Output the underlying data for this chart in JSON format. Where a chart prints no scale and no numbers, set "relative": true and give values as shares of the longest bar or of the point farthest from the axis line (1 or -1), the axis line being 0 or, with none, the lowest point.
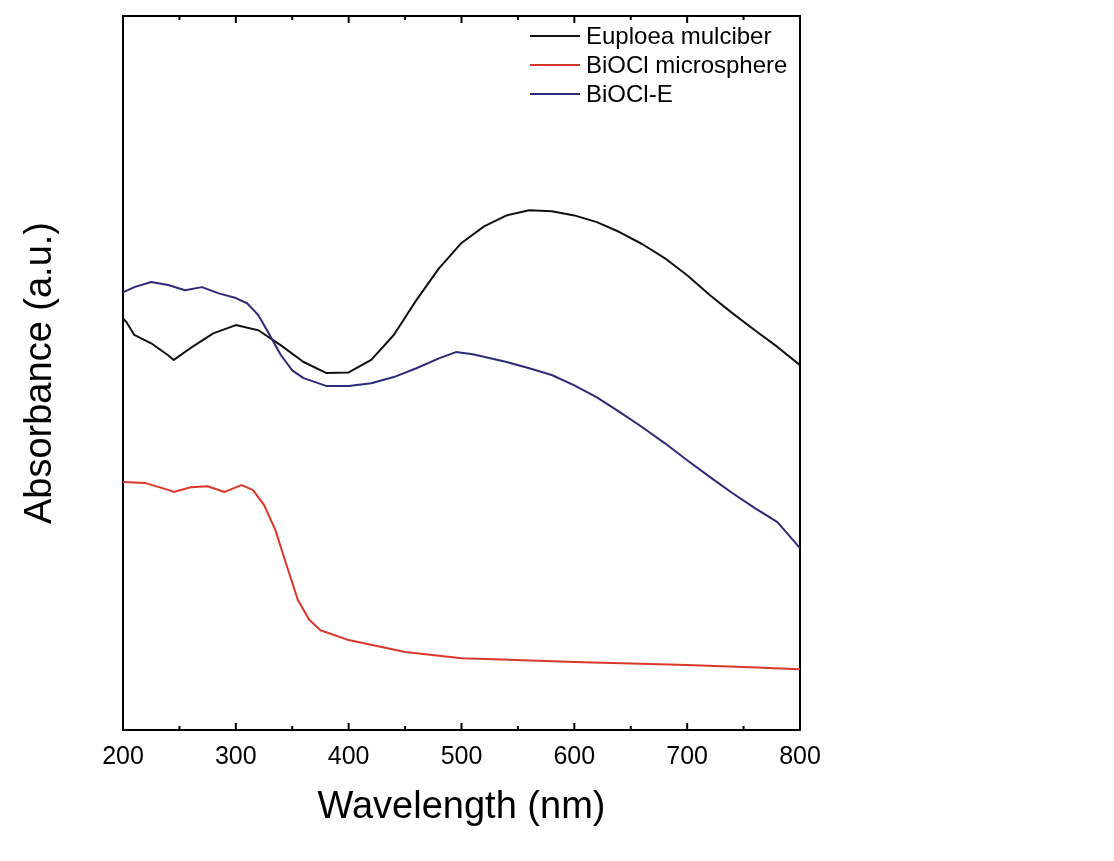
{
  "chart_data": {
    "type": "line",
    "xlabel": "Wavelength (nm)",
    "ylabel": "Absorbance (a.u.)",
    "relative": true,
    "xlim": [
      200,
      800
    ],
    "xticks": [
      200,
      {
        "value": 250,
        "label": null
      },
      300,
      {
        "value": 350,
        "label": null
      },
      400,
      {
        "value": 450,
        "label": null
      },
      500,
      {
        "value": 550,
        "label": null
      },
      600,
      {
        "value": 650,
        "label": null
      },
      700,
      {
        "value": 750,
        "label": null
      },
      800
    ],
    "tick_labels": "x",
    "legend": "top right",
    "grid": false,
    "line_style": "solid",
    "marker": "none",
    "series": [
      {
        "name": "Euploea mulciber",
        "color": "#111111",
        "x": [
          200,
          203,
          210,
          225,
          240,
          245,
          260,
          280,
          300,
          320,
          340,
          360,
          380,
          400,
          420,
          440,
          460,
          480,
          500,
          520,
          540,
          560,
          580,
          600,
          620,
          640,
          660,
          680,
          700,
          720,
          740,
          760,
          780,
          800
        ],
        "values": [
          0.792,
          0.785,
          0.76,
          0.744,
          0.721,
          0.712,
          0.735,
          0.763,
          0.779,
          0.769,
          0.74,
          0.708,
          0.687,
          0.688,
          0.712,
          0.76,
          0.827,
          0.888,
          0.937,
          0.969,
          0.99,
          1,
          0.998,
          0.99,
          0.977,
          0.958,
          0.935,
          0.908,
          0.875,
          0.837,
          0.802,
          0.769,
          0.737,
          0.702
        ]
      },
      {
        "name": "BiOCl microsphere",
        "color": "#d9372a",
        "x": [
          200,
          220,
          240,
          245,
          260,
          275,
          290,
          305,
          315,
          325,
          335,
          345,
          355,
          365,
          375,
          400,
          450,
          500,
          600,
          700,
          800
        ],
        "values": [
          0.477,
          0.475,
          0.462,
          0.458,
          0.467,
          0.469,
          0.458,
          0.471,
          0.462,
          0.433,
          0.385,
          0.317,
          0.25,
          0.212,
          0.192,
          0.173,
          0.15,
          0.138,
          0.131,
          0.125,
          0.117
        ]
      },
      {
        "name": "BiOCl-E",
        "color": "#2e2a7a",
        "x": [
          200,
          210,
          225,
          240,
          255,
          270,
          285,
          300,
          310,
          320,
          330,
          340,
          350,
          360,
          380,
          400,
          420,
          440,
          460,
          480,
          495,
          510,
          540,
          560,
          580,
          600,
          620,
          640,
          660,
          680,
          700,
          720,
          740,
          760,
          780,
          800
        ],
        "values": [
          0.842,
          0.852,
          0.862,
          0.856,
          0.846,
          0.852,
          0.84,
          0.831,
          0.821,
          0.798,
          0.76,
          0.721,
          0.692,
          0.677,
          0.662,
          0.662,
          0.667,
          0.679,
          0.696,
          0.715,
          0.727,
          0.723,
          0.708,
          0.696,
          0.683,
          0.663,
          0.64,
          0.612,
          0.583,
          0.552,
          0.519,
          0.487,
          0.456,
          0.427,
          0.4,
          0.35
        ]
      }
    ]
  }
}
